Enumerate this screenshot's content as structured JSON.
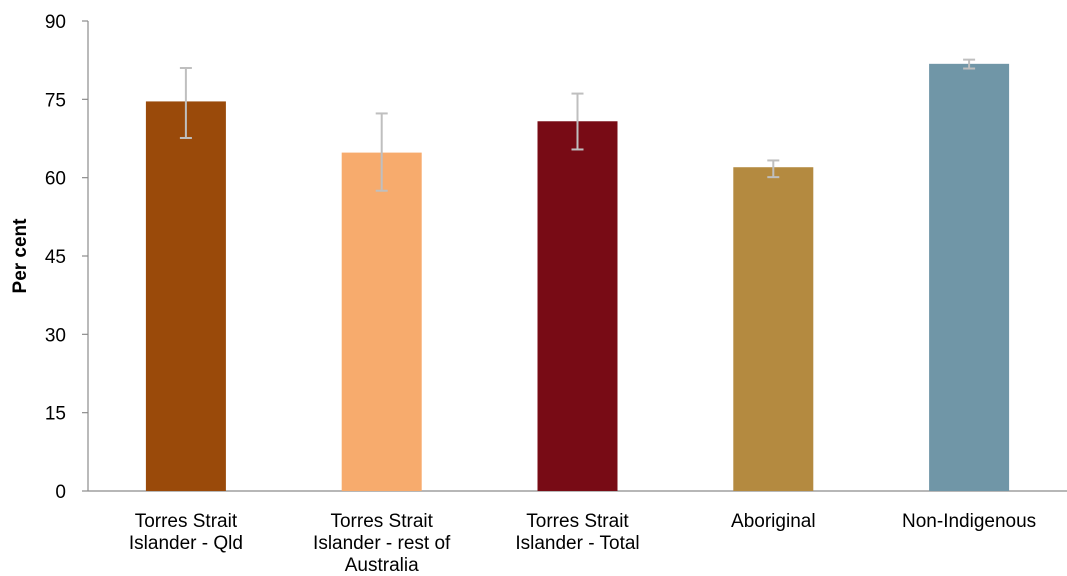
{
  "chart_data": {
    "type": "bar",
    "categories": [
      [
        "Torres Strait",
        "Islander - Qld"
      ],
      [
        "Torres Strait",
        "Islander - rest of",
        "Australia"
      ],
      [
        "Torres Strait",
        "Islander - Total"
      ],
      [
        "Aboriginal"
      ],
      [
        "Non-Indigenous"
      ]
    ],
    "values": [
      74.6,
      64.8,
      70.8,
      62.0,
      81.8
    ],
    "error_low": [
      67.6,
      57.5,
      65.4,
      60.1,
      80.9
    ],
    "error_high": [
      81.0,
      72.3,
      76.1,
      63.3,
      82.6
    ],
    "colors": [
      "#9a4a0a",
      "#f7ab6d",
      "#780b15",
      "#b48a40",
      "#7096a7"
    ],
    "ylabel": "Per cent",
    "ylim": [
      0,
      90
    ],
    "yticks": [
      "0",
      "15",
      "30",
      "45",
      "60",
      "75",
      "90"
    ],
    "grid": false,
    "error_bar_color": "#bfbfbf"
  }
}
